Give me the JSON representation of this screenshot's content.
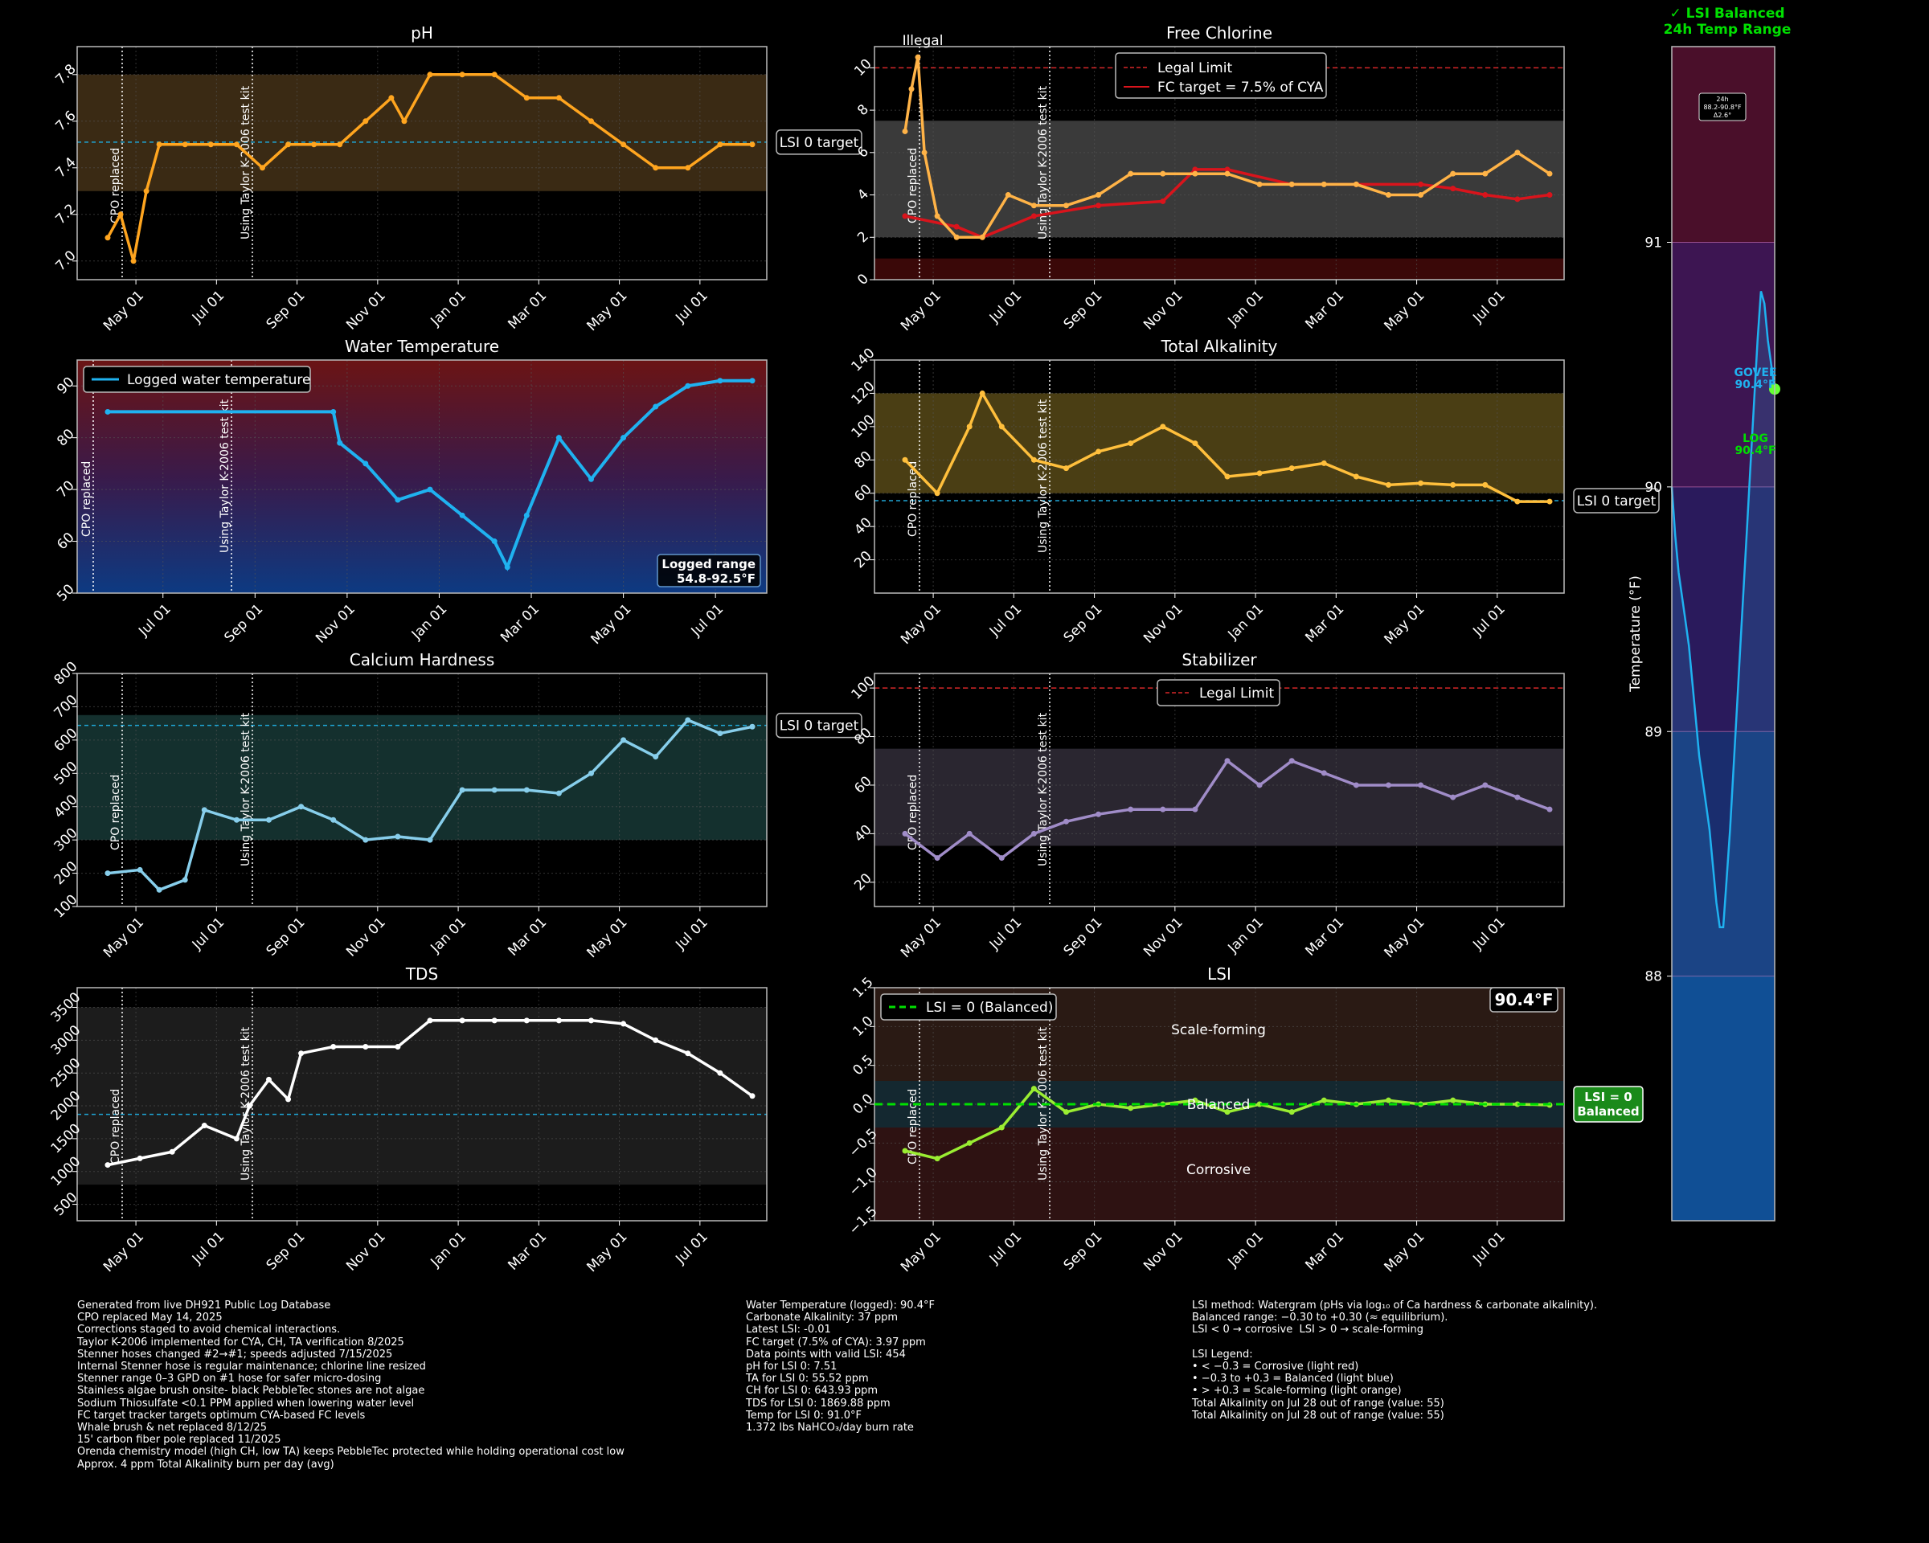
{
  "colors": {
    "background": "#000000",
    "ph": "#ffa51f",
    "fc": "#ffb347",
    "fc_target": "#d9141c",
    "temp": "#1fb2f0",
    "ta": "#ffbf3c",
    "ch": "#87ceeb",
    "cya": "#a08cc8",
    "tds": "#ffffff",
    "lsi": "#9aed32",
    "legal": "#d62728",
    "lsi_target_line": "#1fa6d6",
    "balanced_green": "#00e000",
    "sidebar_line": "#1fb2f0"
  },
  "sidebar": {
    "title_line1": "✓ LSI Balanced",
    "title_line2": "24h Temp Range",
    "ylabel": "Temperature (°F)",
    "range_box_line1": "24h",
    "range_box_line2": "88.2-90.8°F",
    "range_box_line3": "Δ2.6°",
    "govee_label_line1": "GOVEE",
    "govee_label_line2": "90.4°F",
    "log_label_line1": "LOG",
    "log_label_line2": "90.4°F",
    "ylim": [
      87.0,
      91.8
    ],
    "ticks": [
      "88",
      "89",
      "90",
      "91"
    ],
    "tick_values": [
      88,
      89,
      90,
      91
    ],
    "bands": [
      {
        "from": 87.0,
        "to": 88.0,
        "color": "#0d3a82"
      },
      {
        "from": 88.0,
        "to": 89.0,
        "color": "#1a2d6e"
      },
      {
        "from": 89.0,
        "to": 90.0,
        "color": "#2a1a5c"
      },
      {
        "from": 90.0,
        "to": 91.0,
        "color": "#3d1552"
      },
      {
        "from": 91.0,
        "to": 91.8,
        "color": "#4a0f2a"
      }
    ],
    "temp_series": [
      90.0,
      89.8,
      89.65,
      89.55,
      89.45,
      89.35,
      89.2,
      89.05,
      88.9,
      88.8,
      88.7,
      88.6,
      88.45,
      88.3,
      88.2,
      88.2,
      88.4,
      88.6,
      88.85,
      89.1,
      89.35,
      89.6,
      89.85,
      90.1,
      90.35,
      90.6,
      90.8,
      90.75,
      90.6,
      90.5,
      90.4
    ]
  },
  "charts": {
    "ph": {
      "title": "pH",
      "yticks": [
        "7.0",
        "7.2",
        "7.4",
        "7.6",
        "7.8"
      ],
      "ytick_values": [
        7.0,
        7.2,
        7.4,
        7.6,
        7.8
      ],
      "ylim": [
        6.92,
        7.92
      ],
      "xticks": [
        "May 01",
        "Jul 01",
        "Sep 01",
        "Nov 01",
        "Jan 01",
        "Mar 01",
        "May 01",
        "Jul 01"
      ],
      "band": [
        7.3,
        7.8
      ],
      "target_line": 7.51,
      "target_label": "LSI 0 target",
      "vline1_label": "CPO replaced",
      "vline2_label": "Using Taylor K-2006 test kit"
    },
    "fc": {
      "title": "Free Chlorine",
      "yticks": [
        "0",
        "2",
        "4",
        "6",
        "8",
        "10"
      ],
      "ytick_values": [
        0,
        2,
        4,
        6,
        8,
        10
      ],
      "ylim": [
        0,
        11
      ],
      "xticks": [
        "May 01",
        "Jul 01",
        "Sep 01",
        "Nov 01",
        "Jan 01",
        "Mar 01",
        "May 01",
        "Jul 01"
      ],
      "band": [
        2,
        7.5
      ],
      "low_band": [
        0,
        1
      ],
      "legal_line": 10,
      "legend_legal": "Legal Limit",
      "legend_target": "FC target = 7.5% of CYA",
      "illegal_label": "Illegal",
      "vline1_label": "CPO replaced",
      "vline2_label": "Using Taylor K-2006 test kit"
    },
    "temp": {
      "title": "Water Temperature",
      "yticks": [
        "50",
        "60",
        "70",
        "80",
        "90"
      ],
      "ytick_values": [
        50,
        60,
        70,
        80,
        90
      ],
      "ylim": [
        50,
        95
      ],
      "xticks": [
        "Jul 01",
        "Sep 01",
        "Nov 01",
        "Jan 01",
        "Mar 01",
        "May 01",
        "Jul 01"
      ],
      "legend": "Logged water temperature",
      "range_label_line1": "Logged range",
      "range_label_line2": "54.8-92.5°F",
      "vline1_label": "CPO replaced",
      "vline2_label": "Using Taylor K-2006 test kit"
    },
    "ta": {
      "title": "Total Alkalinity",
      "yticks": [
        "20",
        "40",
        "60",
        "80",
        "100",
        "120",
        "140"
      ],
      "ytick_values": [
        20,
        40,
        60,
        80,
        100,
        120,
        140
      ],
      "ylim": [
        0,
        140
      ],
      "xticks": [
        "May 01",
        "Jul 01",
        "Sep 01",
        "Nov 01",
        "Jan 01",
        "Mar 01",
        "May 01",
        "Jul 01"
      ],
      "band": [
        60,
        120
      ],
      "target_line": 55.52,
      "target_label": "LSI 0 target",
      "vline1_label": "CPO replaced",
      "vline2_label": "Using Taylor K-2006 test kit"
    },
    "ch": {
      "title": "Calcium Hardness",
      "yticks": [
        "100",
        "200",
        "300",
        "400",
        "500",
        "600",
        "700",
        "800"
      ],
      "ytick_values": [
        100,
        200,
        300,
        400,
        500,
        600,
        700,
        800
      ],
      "ylim": [
        100,
        800
      ],
      "xticks": [
        "May 01",
        "Jul 01",
        "Sep 01",
        "Nov 01",
        "Jan 01",
        "Mar 01",
        "May 01",
        "Jul 01"
      ],
      "band": [
        300,
        675
      ],
      "target_line": 643.93,
      "target_label": "LSI 0 target",
      "vline1_label": "CPO replaced",
      "vline2_label": "Using Taylor K-2006 test kit"
    },
    "cya": {
      "title": "Stabilizer",
      "yticks": [
        "20",
        "40",
        "60",
        "80",
        "100"
      ],
      "ytick_values": [
        20,
        40,
        60,
        80,
        100
      ],
      "ylim": [
        10,
        106
      ],
      "xticks": [
        "May 01",
        "Jul 01",
        "Sep 01",
        "Nov 01",
        "Jan 01",
        "Mar 01",
        "May 01",
        "Jul 01"
      ],
      "band": [
        35,
        75
      ],
      "legal_line": 100,
      "legend_legal": "Legal Limit",
      "vline1_label": "CPO replaced",
      "vline2_label": "Using Taylor K-2006 test kit"
    },
    "tds": {
      "title": "TDS",
      "yticks": [
        "500",
        "1000",
        "1500",
        "2000",
        "2500",
        "3000",
        "3500"
      ],
      "ytick_values": [
        500,
        1000,
        1500,
        2000,
        2500,
        3000,
        3500
      ],
      "ylim": [
        250,
        3800
      ],
      "xticks": [
        "May 01",
        "Jul 01",
        "Sep 01",
        "Nov 01",
        "Jan 01",
        "Mar 01",
        "May 01",
        "Jul 01"
      ],
      "band": [
        800,
        3500
      ],
      "target_line": 1869.88,
      "vline1_label": "CPO replaced",
      "vline2_label": "Using Taylor K-2006 test kit"
    },
    "lsi": {
      "title": "LSI",
      "yticks": [
        "−1.5",
        "−1.0",
        "−0.5",
        "0.0",
        "0.5",
        "1.0",
        "1.5"
      ],
      "ytick_values": [
        -1.5,
        -1.0,
        -0.5,
        0.0,
        0.5,
        1.0,
        1.5
      ],
      "ylim": [
        -1.5,
        1.5
      ],
      "xticks": [
        "May 01",
        "Jul 01",
        "Sep 01",
        "Nov 01",
        "Jan 01",
        "Mar 01",
        "May 01",
        "Jul 01"
      ],
      "legend": "LSI = 0 (Balanced)",
      "temp_badge": "90.4°F",
      "scale_label": "Scale-forming",
      "balanced_label": "Balanced",
      "corrosive_label": "Corrosive",
      "balanced_badge_line1": "LSI = 0",
      "balanced_badge_line2": "Balanced",
      "vline1_label": "CPO replaced",
      "vline2_label": "Using Taylor K-2006 test kit"
    }
  },
  "chart_data": [
    {
      "type": "line",
      "title": "pH",
      "x": [
        0,
        0.02,
        0.04,
        0.06,
        0.08,
        0.12,
        0.16,
        0.2,
        0.24,
        0.28,
        0.32,
        0.36,
        0.4,
        0.44,
        0.46,
        0.5,
        0.55,
        0.6,
        0.65,
        0.7,
        0.75,
        0.8,
        0.85,
        0.9,
        0.95,
        1.0
      ],
      "values": [
        7.1,
        7.2,
        7.0,
        7.3,
        7.5,
        7.5,
        7.5,
        7.5,
        7.4,
        7.5,
        7.5,
        7.5,
        7.6,
        7.7,
        7.6,
        7.8,
        7.8,
        7.8,
        7.7,
        7.7,
        7.6,
        7.5,
        7.4,
        7.4,
        7.5,
        7.5
      ]
    },
    {
      "type": "line",
      "title": "Free Chlorine",
      "x": [
        0,
        0.01,
        0.02,
        0.03,
        0.05,
        0.08,
        0.12,
        0.16,
        0.2,
        0.25,
        0.3,
        0.35,
        0.4,
        0.45,
        0.5,
        0.55,
        0.6,
        0.65,
        0.7,
        0.75,
        0.8,
        0.85,
        0.9,
        0.95,
        1.0
      ],
      "values": [
        7,
        9,
        10.5,
        6,
        3,
        2,
        2,
        4,
        3.5,
        3.5,
        4,
        5,
        5,
        5,
        5,
        4.5,
        4.5,
        4.5,
        4.5,
        4,
        4,
        5,
        5,
        6,
        5
      ]
    },
    {
      "type": "line",
      "title": "FC target = 7.5% of CYA",
      "x": [
        0,
        0.08,
        0.12,
        0.2,
        0.3,
        0.4,
        0.45,
        0.5,
        0.6,
        0.7,
        0.8,
        0.85,
        0.9,
        0.95,
        1.0
      ],
      "values": [
        3,
        2.5,
        2,
        3,
        3.5,
        3.7,
        5.2,
        5.2,
        4.5,
        4.5,
        4.5,
        4.3,
        4,
        3.8,
        4
      ]
    },
    {
      "type": "line",
      "title": "Water Temperature",
      "x": [
        0,
        0.35,
        0.36,
        0.4,
        0.45,
        0.5,
        0.55,
        0.6,
        0.62,
        0.65,
        0.7,
        0.75,
        0.8,
        0.85,
        0.9,
        0.95,
        1.0
      ],
      "values": [
        85,
        85,
        79,
        75,
        68,
        70,
        65,
        60,
        55,
        65,
        80,
        72,
        80,
        86,
        90,
        91,
        91
      ]
    },
    {
      "type": "line",
      "title": "Total Alkalinity",
      "x": [
        0,
        0.05,
        0.1,
        0.12,
        0.15,
        0.2,
        0.25,
        0.3,
        0.35,
        0.4,
        0.45,
        0.5,
        0.55,
        0.6,
        0.65,
        0.7,
        0.75,
        0.8,
        0.85,
        0.9,
        0.95,
        1.0
      ],
      "values": [
        80,
        60,
        100,
        120,
        100,
        80,
        75,
        85,
        90,
        100,
        90,
        70,
        72,
        75,
        78,
        70,
        65,
        66,
        65,
        65,
        55,
        55
      ]
    },
    {
      "type": "line",
      "title": "Calcium Hardness",
      "x": [
        0,
        0.05,
        0.08,
        0.12,
        0.15,
        0.2,
        0.25,
        0.3,
        0.35,
        0.4,
        0.45,
        0.5,
        0.55,
        0.6,
        0.65,
        0.7,
        0.75,
        0.8,
        0.85,
        0.9,
        0.95,
        1.0
      ],
      "values": [
        200,
        210,
        150,
        180,
        390,
        360,
        360,
        400,
        360,
        300,
        310,
        300,
        450,
        450,
        450,
        440,
        500,
        600,
        550,
        660,
        620,
        640
      ]
    },
    {
      "type": "line",
      "title": "Stabilizer",
      "x": [
        0,
        0.05,
        0.1,
        0.15,
        0.2,
        0.25,
        0.3,
        0.35,
        0.4,
        0.45,
        0.5,
        0.55,
        0.6,
        0.65,
        0.7,
        0.75,
        0.8,
        0.85,
        0.9,
        0.95,
        1.0
      ],
      "values": [
        40,
        30,
        40,
        30,
        40,
        45,
        48,
        50,
        50,
        50,
        70,
        60,
        70,
        65,
        60,
        60,
        60,
        55,
        60,
        55,
        50
      ]
    },
    {
      "type": "line",
      "title": "TDS",
      "x": [
        0,
        0.05,
        0.1,
        0.15,
        0.2,
        0.22,
        0.25,
        0.28,
        0.3,
        0.35,
        0.4,
        0.45,
        0.5,
        0.55,
        0.6,
        0.65,
        0.7,
        0.75,
        0.8,
        0.85,
        0.9,
        0.95,
        1.0
      ],
      "values": [
        1100,
        1200,
        1300,
        1700,
        1500,
        2000,
        2400,
        2100,
        2800,
        2900,
        2900,
        2900,
        3300,
        3300,
        3300,
        3300,
        3300,
        3300,
        3250,
        3000,
        2800,
        2500,
        2150
      ]
    },
    {
      "type": "line",
      "title": "LSI",
      "x": [
        0,
        0.05,
        0.1,
        0.15,
        0.2,
        0.25,
        0.3,
        0.35,
        0.4,
        0.45,
        0.5,
        0.55,
        0.6,
        0.65,
        0.7,
        0.75,
        0.8,
        0.85,
        0.9,
        0.95,
        1.0
      ],
      "values": [
        -0.6,
        -0.7,
        -0.5,
        -0.3,
        0.2,
        -0.1,
        0.0,
        -0.05,
        0.0,
        0.05,
        -0.1,
        0.0,
        -0.1,
        0.05,
        0.0,
        0.05,
        0.0,
        0.05,
        0.0,
        0.0,
        -0.01
      ]
    }
  ],
  "notes": {
    "col1": [
      "Generated from live DH921 Public Log Database",
      "CPO replaced May 14, 2025",
      "Corrections staged to avoid chemical interactions.",
      "Taylor K-2006 implemented for CYA, CH, TA verification 8/2025",
      "Stenner hoses changed #2→#1; speeds adjusted 7/15/2025",
      "Internal Stenner hose is regular maintenance; chlorine line resized",
      "Stenner range 0–3 GPD on #1 hose for safer micro-dosing",
      "Stainless algae brush onsite- black PebbleTec stones are not algae",
      "Sodium Thiosulfate <0.1 PPM applied when lowering water level",
      "FC target tracker targets optimum CYA-based FC levels",
      "Whale brush & net replaced 8/12/25",
      "15' carbon fiber pole replaced 11/2025",
      "Orenda chemistry model (high CH, low TA) keeps PebbleTec protected while holding operational cost low",
      "Approx. 4 ppm Total Alkalinity burn per day (avg)"
    ],
    "col2": [
      "Water Temperature (logged): 90.4°F",
      "Carbonate Alkalinity: 37 ppm",
      "Latest LSI: -0.01",
      "FC target (7.5% of CYA): 3.97 ppm",
      "Data points with valid LSI: 454",
      "pH for LSI 0: 7.51",
      "TA for LSI 0: 55.52 ppm",
      "CH for LSI 0: 643.93 ppm",
      "TDS for LSI 0: 1869.88 ppm",
      "Temp for LSI 0: 91.0°F",
      "1.372 lbs NaHCO₃/day burn rate"
    ],
    "col3": [
      "LSI method: Watergram (pHs via log₁₀ of Ca hardness & carbonate alkalinity).",
      "Balanced range: −0.30 to +0.30 (≈ equilibrium).",
      "LSI < 0 → corrosive  LSI > 0 → scale-forming",
      "",
      "LSI Legend:",
      "• < −0.3 = Corrosive (light red)",
      "• −0.3 to +0.3 = Balanced (light blue)",
      "• > +0.3 = Scale-forming (light orange)",
      "Total Alkalinity on Jul 28 out of range (value: 55)",
      "Total Alkalinity on Jul 28 out of range (value: 55)"
    ]
  }
}
